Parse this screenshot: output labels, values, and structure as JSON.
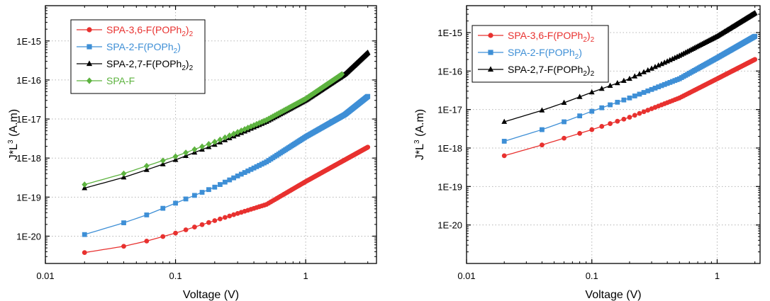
{
  "chart_data": [
    {
      "type": "scatter",
      "xlabel": "Voltage (V)",
      "ylabel": "J*L^3 (A.m)",
      "xscale": "log",
      "yscale": "log",
      "xlim": [
        0.01,
        3.5
      ],
      "ylim": [
        2e-21,
        8e-15
      ],
      "x_ticks": [
        "0.01",
        "0.1",
        "1"
      ],
      "y_ticks": [
        "1E-20",
        "1E-19",
        "1E-18",
        "1E-17",
        "1E-16",
        "1E-15"
      ],
      "grid": true,
      "legend_position": "top-left",
      "series": [
        {
          "name": "SPA-3,6-F(POPh2)2",
          "color": "#e8312f",
          "marker": "circle",
          "v_min": 0.02,
          "v_max": 3.0,
          "x": [
            0.02,
            0.04,
            0.06,
            0.1,
            0.2,
            0.5,
            1.0,
            2.0,
            3.0
          ],
          "y": [
            3.8e-21,
            5.5e-21,
            7.5e-21,
            1.2e-20,
            2.5e-20,
            6.5e-20,
            2.5e-19,
            9e-19,
            1.9e-18
          ]
        },
        {
          "name": "SPA-2-F(POPh2)",
          "color": "#3e8fd6",
          "marker": "square",
          "v_min": 0.02,
          "v_max": 3.0,
          "x": [
            0.02,
            0.04,
            0.06,
            0.1,
            0.2,
            0.5,
            1.0,
            2.0,
            3.0
          ],
          "y": [
            1.1e-20,
            2.2e-20,
            3.5e-20,
            7e-20,
            1.8e-19,
            8e-19,
            3.5e-18,
            1.3e-17,
            3.8e-17
          ]
        },
        {
          "name": "SPA-2,7-F(POPh2)2",
          "color": "#000000",
          "marker": "triangle",
          "v_min": 0.02,
          "v_max": 3.0,
          "x": [
            0.02,
            0.04,
            0.06,
            0.1,
            0.2,
            0.5,
            1.0,
            2.0,
            3.0
          ],
          "y": [
            1.7e-19,
            3.2e-19,
            5e-19,
            9e-19,
            2.2e-18,
            8.5e-18,
            3e-17,
            1.4e-16,
            5e-16
          ]
        },
        {
          "name": "SPA-F",
          "color": "#5db33f",
          "marker": "diamond",
          "v_min": 0.02,
          "v_max": 1.9,
          "x": [
            0.02,
            0.04,
            0.06,
            0.1,
            0.2,
            0.5,
            1.0,
            1.9
          ],
          "y": [
            2.1e-19,
            4e-19,
            6.3e-19,
            1.1e-18,
            2.6e-18,
            9.5e-18,
            3.3e-17,
            1.4e-16
          ]
        }
      ]
    },
    {
      "type": "scatter",
      "xlabel": "Voltage (V)",
      "ylabel": "J*L^3 (A.m)",
      "xscale": "log",
      "yscale": "log",
      "xlim": [
        0.01,
        2.2
      ],
      "ylim": [
        1e-21,
        5e-15
      ],
      "x_ticks": [
        "0.01",
        "0.1",
        "1"
      ],
      "y_ticks": [
        "1E-20",
        "1E-19",
        "1E-18",
        "1E-17",
        "1E-16",
        "1E-15"
      ],
      "grid": true,
      "legend_position": "top-left",
      "series": [
        {
          "name": "SPA-3,6-F(POPh2)2",
          "color": "#e8312f",
          "marker": "circle",
          "v_min": 0.02,
          "v_max": 2.0,
          "x": [
            0.02,
            0.04,
            0.06,
            0.1,
            0.2,
            0.5,
            1.0,
            2.0
          ],
          "y": [
            6.3e-19,
            1.2e-18,
            1.8e-18,
            3e-18,
            6.3e-18,
            2e-17,
            6.3e-17,
            2e-16
          ]
        },
        {
          "name": "SPA-2-F(POPh2)",
          "color": "#3e8fd6",
          "marker": "square",
          "v_min": 0.02,
          "v_max": 2.0,
          "x": [
            0.02,
            0.04,
            0.06,
            0.1,
            0.2,
            0.5,
            1.0,
            2.0
          ],
          "y": [
            1.5e-18,
            3e-18,
            4.8e-18,
            9e-18,
            2e-17,
            6.3e-17,
            2.2e-16,
            8e-16
          ]
        },
        {
          "name": "SPA-2,7-F(POPh2)2",
          "color": "#000000",
          "marker": "triangle",
          "v_min": 0.02,
          "v_max": 2.0,
          "x": [
            0.02,
            0.04,
            0.06,
            0.1,
            0.2,
            0.5,
            1.0,
            2.0
          ],
          "y": [
            4.8e-18,
            9.5e-18,
            1.5e-17,
            2.8e-17,
            6.3e-17,
            2.5e-16,
            8e-16,
            3.2e-15
          ]
        }
      ]
    }
  ]
}
